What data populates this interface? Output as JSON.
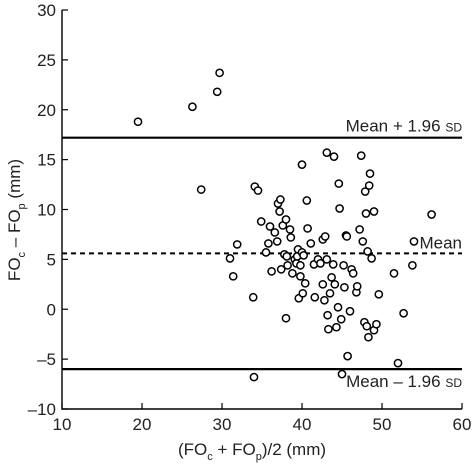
{
  "chart_data": {
    "type": "scatter",
    "xlabel": {
      "open": "(FO",
      "sub1": "c",
      "mid": " + FO",
      "sub2": "p",
      "close": ")/2 (mm)"
    },
    "ylabel": {
      "pre": "FO",
      "sub1": "c",
      "mid": " – FO",
      "sub2": "p",
      "post": " (mm)"
    },
    "xlim": [
      10,
      60
    ],
    "ylim": [
      -10,
      30
    ],
    "xticks": [
      10,
      20,
      30,
      40,
      50,
      60
    ],
    "yticks": [
      -10,
      -5,
      0,
      5,
      10,
      15,
      20,
      25,
      30
    ],
    "reference_lines": [
      {
        "name": "upper",
        "y": 17.2,
        "style": "solid",
        "label": "Mean + 1.96 ",
        "label_small": "SD"
      },
      {
        "name": "mean",
        "y": 5.6,
        "style": "dashed",
        "label": "Mean",
        "label_small": ""
      },
      {
        "name": "lower",
        "y": -6.0,
        "style": "solid",
        "label": "Mean – 1.96 ",
        "label_small": "SD"
      }
    ],
    "points": [
      [
        19.5,
        18.8
      ],
      [
        26.3,
        20.3
      ],
      [
        29.4,
        21.8
      ],
      [
        29.7,
        23.7
      ],
      [
        27.4,
        12.0
      ],
      [
        31.0,
        5.1
      ],
      [
        31.4,
        3.3
      ],
      [
        31.9,
        6.5
      ],
      [
        33.9,
        1.2
      ],
      [
        34.0,
        -6.8
      ],
      [
        34.1,
        12.3
      ],
      [
        34.5,
        11.9
      ],
      [
        34.9,
        8.8
      ],
      [
        35.5,
        5.7
      ],
      [
        35.8,
        6.6
      ],
      [
        36.0,
        8.3
      ],
      [
        36.2,
        3.8
      ],
      [
        36.6,
        7.7
      ],
      [
        36.9,
        6.8
      ],
      [
        37.0,
        10.6
      ],
      [
        37.2,
        9.8
      ],
      [
        37.3,
        11.0
      ],
      [
        37.4,
        4.0
      ],
      [
        37.6,
        8.4
      ],
      [
        37.8,
        5.5
      ],
      [
        38.0,
        9.0
      ],
      [
        38.1,
        5.3
      ],
      [
        38.2,
        4.4
      ],
      [
        38.0,
        -0.9
      ],
      [
        38.5,
        8.0
      ],
      [
        38.6,
        7.2
      ],
      [
        38.8,
        3.6
      ],
      [
        39.1,
        5.0
      ],
      [
        39.3,
        4.6
      ],
      [
        39.4,
        5.3
      ],
      [
        39.5,
        6.0
      ],
      [
        39.6,
        1.1
      ],
      [
        39.8,
        3.3
      ],
      [
        39.8,
        4.4
      ],
      [
        40.0,
        14.5
      ],
      [
        40.0,
        5.7
      ],
      [
        40.2,
        5.4
      ],
      [
        40.1,
        1.6
      ],
      [
        40.4,
        2.6
      ],
      [
        40.6,
        10.9
      ],
      [
        40.7,
        8.1
      ],
      [
        41.1,
        6.6
      ],
      [
        41.5,
        4.5
      ],
      [
        41.6,
        1.2
      ],
      [
        42.0,
        5.0
      ],
      [
        42.3,
        4.6
      ],
      [
        42.6,
        7.0
      ],
      [
        42.6,
        2.5
      ],
      [
        42.8,
        0.9
      ],
      [
        42.9,
        7.3
      ],
      [
        43.1,
        15.7
      ],
      [
        43.1,
        5.0
      ],
      [
        43.2,
        -0.6
      ],
      [
        43.3,
        -2.0
      ],
      [
        43.5,
        1.6
      ],
      [
        43.7,
        3.2
      ],
      [
        44.0,
        15.3
      ],
      [
        43.9,
        4.5
      ],
      [
        44.1,
        2.5
      ],
      [
        44.3,
        -1.8
      ],
      [
        44.5,
        0.2
      ],
      [
        44.6,
        12.6
      ],
      [
        44.7,
        10.1
      ],
      [
        44.9,
        -1.0
      ],
      [
        45.0,
        -6.5
      ],
      [
        45.2,
        4.4
      ],
      [
        45.3,
        2.2
      ],
      [
        45.5,
        7.4
      ],
      [
        45.6,
        7.3
      ],
      [
        45.7,
        -4.7
      ],
      [
        46.0,
        -0.2
      ],
      [
        46.2,
        4.0
      ],
      [
        46.4,
        3.6
      ],
      [
        46.8,
        1.7
      ],
      [
        46.9,
        2.3
      ],
      [
        47.2,
        8.0
      ],
      [
        47.4,
        15.4
      ],
      [
        47.6,
        6.8
      ],
      [
        47.8,
        -1.3
      ],
      [
        47.9,
        11.8
      ],
      [
        48.0,
        9.6
      ],
      [
        48.1,
        -1.7
      ],
      [
        48.2,
        5.8
      ],
      [
        48.4,
        12.4
      ],
      [
        48.5,
        13.6
      ],
      [
        48.3,
        -2.8
      ],
      [
        48.7,
        5.1
      ],
      [
        49.0,
        9.8
      ],
      [
        49.0,
        -2.1
      ],
      [
        49.3,
        -1.5
      ],
      [
        49.6,
        1.5
      ],
      [
        51.5,
        3.6
      ],
      [
        52.0,
        -5.4
      ],
      [
        52.7,
        -0.4
      ],
      [
        53.8,
        4.4
      ],
      [
        54.0,
        6.8
      ],
      [
        56.2,
        9.5
      ]
    ]
  }
}
